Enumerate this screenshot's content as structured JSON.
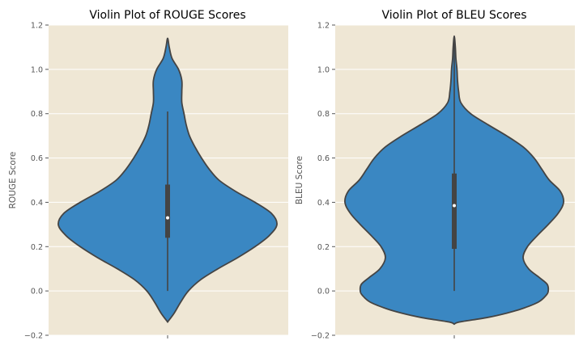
{
  "chart_data": [
    {
      "type": "violin",
      "title": "Violin Plot of ROUGE Scores",
      "xlabel": "",
      "ylabel": "ROUGE Score",
      "ylim": [
        -0.2,
        1.2
      ],
      "yticks": [
        -0.2,
        0.0,
        0.2,
        0.4,
        0.6,
        0.8,
        1.0,
        1.2
      ],
      "yticklabels": [
        "−0.2",
        "0.0",
        "0.2",
        "0.4",
        "0.6",
        "0.8",
        "1.0",
        "1.2"
      ],
      "grid": true,
      "violin_color": "#3a87c2",
      "outline_color": "#444444",
      "background_color": "#efe7d5",
      "density_profile": [
        [
          -0.14,
          0.0
        ],
        [
          -0.1,
          0.06
        ],
        [
          -0.05,
          0.12
        ],
        [
          0.0,
          0.19
        ],
        [
          0.05,
          0.3
        ],
        [
          0.1,
          0.46
        ],
        [
          0.15,
          0.64
        ],
        [
          0.2,
          0.8
        ],
        [
          0.25,
          0.93
        ],
        [
          0.3,
          1.0
        ],
        [
          0.35,
          0.95
        ],
        [
          0.4,
          0.8
        ],
        [
          0.45,
          0.62
        ],
        [
          0.5,
          0.47
        ],
        [
          0.55,
          0.38
        ],
        [
          0.6,
          0.31
        ],
        [
          0.65,
          0.25
        ],
        [
          0.7,
          0.2
        ],
        [
          0.75,
          0.17
        ],
        [
          0.8,
          0.15
        ],
        [
          0.85,
          0.13
        ],
        [
          0.9,
          0.13
        ],
        [
          0.95,
          0.13
        ],
        [
          1.0,
          0.1
        ],
        [
          1.05,
          0.04
        ],
        [
          1.1,
          0.015
        ],
        [
          1.14,
          0.0
        ]
      ],
      "box": {
        "whisker_low": 0.0,
        "q1": 0.24,
        "median": 0.33,
        "q3": 0.48,
        "whisker_high": 0.81
      }
    },
    {
      "type": "violin",
      "title": "Violin Plot of BLEU Scores",
      "xlabel": "",
      "ylabel": "BLEU Score",
      "ylim": [
        -0.2,
        1.2
      ],
      "yticks": [
        -0.2,
        0.0,
        0.2,
        0.4,
        0.6,
        0.8,
        1.0,
        1.2
      ],
      "yticklabels": [
        "−0.2",
        "0.0",
        "0.2",
        "0.4",
        "0.6",
        "0.8",
        "1.0",
        "1.2"
      ],
      "grid": true,
      "violin_color": "#3a87c2",
      "outline_color": "#444444",
      "background_color": "#efe7d5",
      "density_profile": [
        [
          -0.15,
          0.0
        ],
        [
          -0.14,
          0.05
        ],
        [
          -0.12,
          0.3
        ],
        [
          -0.1,
          0.48
        ],
        [
          -0.08,
          0.62
        ],
        [
          -0.05,
          0.77
        ],
        [
          -0.02,
          0.84
        ],
        [
          0.0,
          0.86
        ],
        [
          0.03,
          0.85
        ],
        [
          0.06,
          0.78
        ],
        [
          0.1,
          0.68
        ],
        [
          0.15,
          0.63
        ],
        [
          0.2,
          0.67
        ],
        [
          0.25,
          0.76
        ],
        [
          0.3,
          0.86
        ],
        [
          0.35,
          0.95
        ],
        [
          0.4,
          1.0
        ],
        [
          0.45,
          0.97
        ],
        [
          0.5,
          0.87
        ],
        [
          0.55,
          0.8
        ],
        [
          0.6,
          0.73
        ],
        [
          0.65,
          0.63
        ],
        [
          0.7,
          0.48
        ],
        [
          0.75,
          0.31
        ],
        [
          0.8,
          0.15
        ],
        [
          0.85,
          0.06
        ],
        [
          0.9,
          0.04
        ],
        [
          0.95,
          0.03
        ],
        [
          1.0,
          0.025
        ],
        [
          1.05,
          0.015
        ],
        [
          1.1,
          0.01
        ],
        [
          1.15,
          0.0
        ]
      ],
      "box": {
        "whisker_low": 0.0,
        "q1": 0.19,
        "median": 0.385,
        "q3": 0.53,
        "whisker_high": 1.15
      }
    }
  ]
}
